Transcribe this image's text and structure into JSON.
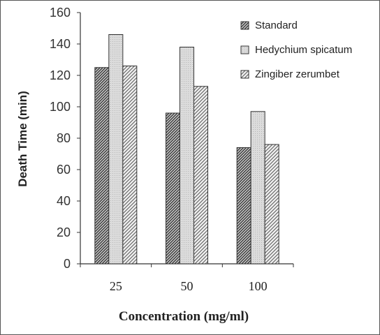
{
  "chart_data": {
    "type": "bar",
    "title": "",
    "xlabel": "Concentration (mg/ml)",
    "ylabel": "Death Time (min)",
    "ylim": [
      0,
      160
    ],
    "yticks": [
      0,
      20,
      40,
      60,
      80,
      100,
      120,
      140,
      160
    ],
    "categories": [
      "25",
      "50",
      "100"
    ],
    "series": [
      {
        "name": "Standard",
        "values": [
          125,
          96,
          74
        ],
        "pattern": "dense-diagonal",
        "color": "#3a3a3a"
      },
      {
        "name": "Hedychium spicatum",
        "values": [
          146,
          138,
          97
        ],
        "pattern": "light-dots",
        "color": "#cfcfcf"
      },
      {
        "name": "Zingiber zerumbet",
        "values": [
          126,
          113,
          76
        ],
        "pattern": "sparse-diagonal",
        "color": "#8a8a8a"
      }
    ],
    "legend_position": "top-right",
    "grid": false
  }
}
